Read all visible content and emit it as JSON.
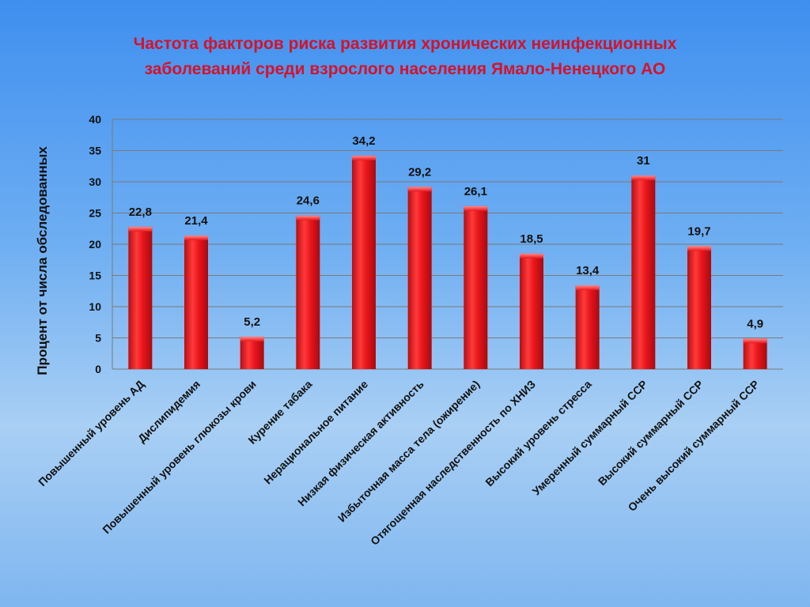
{
  "title": {
    "line1": "Частота факторов риска развития хронических неинфекционных",
    "line2": "заболеваний среди взрослого населения Ямало-Ненецкого АО"
  },
  "colors": {
    "bar": "#e8161c",
    "bar_light": "#ff6a6a",
    "bar_dark": "#b80d12",
    "title": "#d4132a",
    "text": "#111111",
    "grid": "#7a7a7a"
  },
  "chart_data": {
    "type": "bar",
    "title": "Частота факторов риска развития хронических неинфекционных заболеваний среди взрослого населения Ямало-Ненецкого АО",
    "xlabel": "",
    "ylabel": "Процент от числа обследованных",
    "ylim": [
      0,
      40
    ],
    "yticks": [
      "0",
      "5",
      "10",
      "15",
      "20",
      "25",
      "30",
      "35",
      "40"
    ],
    "grid": true,
    "legend": "none",
    "categories": [
      "Повышенный уровень АД",
      "Дислипидемия",
      "Повышенный уровень глюкозы крови",
      "Курение табака",
      "Нерациональное питание",
      "Низкая физическая активность",
      "Избыточная масса тела (ожирение)",
      "Отягощенная наследственность по ХНИЗ",
      "Высокий уровень стресса",
      "Умеренный суммарный ССР",
      "Высокий суммарный ССР",
      "Очень высокий суммарный ССР"
    ],
    "values": [
      22.8,
      21.4,
      5.2,
      24.6,
      34.2,
      29.2,
      26.1,
      18.5,
      13.4,
      31,
      19.7,
      4.9
    ],
    "value_labels": [
      "22,8",
      "21,4",
      "5,2",
      "24,6",
      "34,2",
      "29,2",
      "26,1",
      "18,5",
      "13,4",
      "31",
      "19,7",
      "4,9"
    ]
  }
}
